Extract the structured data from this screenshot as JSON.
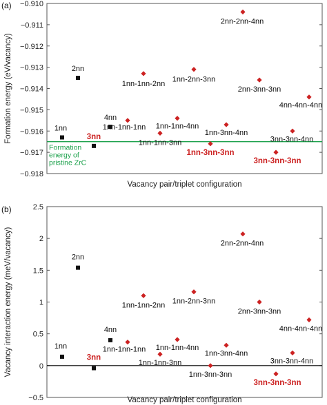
{
  "colors": {
    "black": "#111111",
    "red": "#cc2222",
    "green": "#1aa04a",
    "frame": "#555555"
  },
  "chart_data": [
    {
      "type": "scatter",
      "panel_label": "(a)",
      "ylabel": "Formation energy (eV/vacancy)",
      "xlabel": "Vacancy pair/triplet configuration",
      "ylim": [
        -0.918,
        -0.91
      ],
      "yticks": [
        -0.918,
        -0.917,
        -0.916,
        -0.915,
        -0.914,
        -0.913,
        -0.912,
        -0.911,
        -0.91
      ],
      "ytick_labels": [
        "−0.918",
        "−0.917",
        "−0.916",
        "−0.915",
        "−0.914",
        "−0.913",
        "−0.912",
        "−0.911",
        "−0.910"
      ],
      "reference_line": {
        "value": -0.9165,
        "label": [
          "Formation",
          "energy of",
          "pristine ZrC"
        ]
      },
      "pairs": [
        {
          "label": "1nn",
          "y": -0.9163,
          "bold": false
        },
        {
          "label": "2nn",
          "y": -0.9135,
          "bold": false
        },
        {
          "label": "3nn",
          "y": -0.9167,
          "bold": true
        },
        {
          "label": "4nn",
          "y": -0.9158,
          "bold": false
        }
      ],
      "triplets": [
        {
          "label": "1nn-1nn-1nn",
          "y": -0.9155,
          "bold": false
        },
        {
          "label": "1nn-1nn-2nn",
          "y": -0.9133,
          "bold": false
        },
        {
          "label": "1nn-1nn-3nn",
          "y": -0.9161,
          "bold": false
        },
        {
          "label": "1nn-1nn-4nn",
          "y": -0.9154,
          "bold": false
        },
        {
          "label": "1nn-2nn-3nn",
          "y": -0.9131,
          "bold": false
        },
        {
          "label": "1nn-3nn-3nn",
          "y": -0.9166,
          "bold": true
        },
        {
          "label": "1nn-3nn-4nn",
          "y": -0.9157,
          "bold": false
        },
        {
          "label": "2nn-2nn-4nn",
          "y": -0.9104,
          "bold": false
        },
        {
          "label": "2nn-3nn-3nn",
          "y": -0.9136,
          "bold": false
        },
        {
          "label": "3nn-3nn-3nn",
          "y": -0.917,
          "bold": true
        },
        {
          "label": "3nn-3nn-4nn",
          "y": -0.916,
          "bold": false
        },
        {
          "label": "4nn-4nn-4nn",
          "y": -0.9144,
          "bold": false
        }
      ]
    },
    {
      "type": "scatter",
      "panel_label": "(b)",
      "ylabel": "Vacancy interaction energy (meV/vacancy)",
      "xlabel": "Vacancy pair/triplet configuration",
      "ylim": [
        -0.5,
        2.5
      ],
      "yticks": [
        -0.5,
        0,
        0.5,
        1,
        1.5,
        2,
        2.5
      ],
      "ytick_labels": [
        "−0.5",
        "0",
        "0.5",
        "1",
        "1.5",
        "2",
        "2.5"
      ],
      "reference_line": {
        "value": 0,
        "label": []
      },
      "pairs": [
        {
          "label": "1nn",
          "y": 0.14,
          "bold": false
        },
        {
          "label": "2nn",
          "y": 1.54,
          "bold": false
        },
        {
          "label": "3nn",
          "y": -0.04,
          "bold": true
        },
        {
          "label": "4nn",
          "y": 0.4,
          "bold": false
        }
      ],
      "triplets": [
        {
          "label": "1nn-1nn-1nn",
          "y": 0.37,
          "bold": false
        },
        {
          "label": "1nn-1nn-2nn",
          "y": 1.1,
          "bold": false
        },
        {
          "label": "1nn-1nn-3nn",
          "y": 0.18,
          "bold": false
        },
        {
          "label": "1nn-1nn-4nn",
          "y": 0.41,
          "bold": false
        },
        {
          "label": "1nn-2nn-3nn",
          "y": 1.16,
          "bold": false
        },
        {
          "label": "1nn-3nn-3nn",
          "y": 0.0,
          "bold": false
        },
        {
          "label": "1nn-3nn-4nn",
          "y": 0.32,
          "bold": false
        },
        {
          "label": "2nn-2nn-4nn",
          "y": 2.07,
          "bold": false
        },
        {
          "label": "2nn-3nn-3nn",
          "y": 1.0,
          "bold": false
        },
        {
          "label": "3nn-3nn-3nn",
          "y": -0.13,
          "bold": true
        },
        {
          "label": "3nn-3nn-4nn",
          "y": 0.2,
          "bold": false
        },
        {
          "label": "4nn-4nn-4nn",
          "y": 0.72,
          "bold": false
        }
      ]
    }
  ]
}
